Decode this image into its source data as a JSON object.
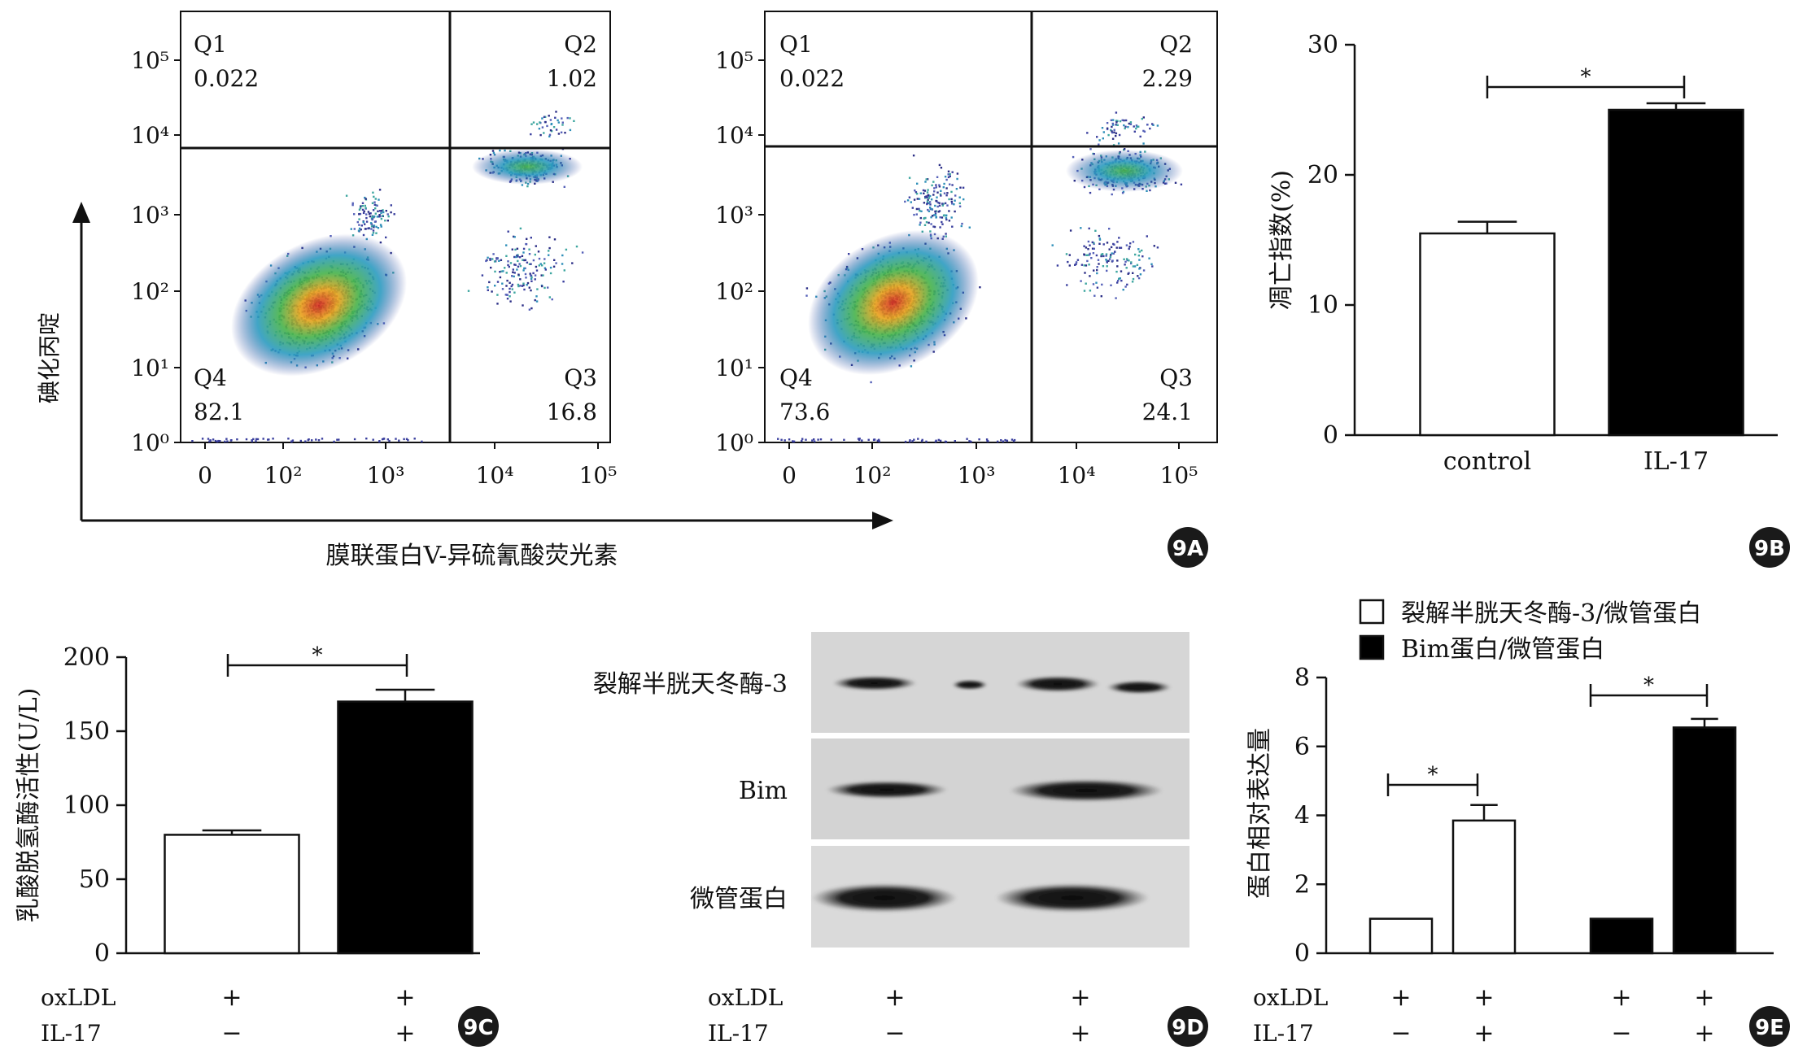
{
  "flow_y_ticks": [
    "10⁰",
    "10¹",
    "10²",
    "10³",
    "10⁴",
    "10⁵"
  ],
  "flow_x_ticks": [
    "0",
    "10²",
    "10³",
    "10⁴",
    "10⁵"
  ],
  "flow_ylabel": "碘化丙啶",
  "flow_xlabel": "膜联蛋白V-异硫氰酸荧光素",
  "flow_plots": [
    {
      "q1_label": "Q1",
      "q1": "0.022",
      "q2_label": "Q2",
      "q2": "1.02",
      "q3_label": "Q3",
      "q3": "16.8",
      "q4_label": "Q4",
      "q4": "82.1"
    },
    {
      "q1_label": "Q1",
      "q1": "0.022",
      "q2_label": "Q2",
      "q2": "2.29",
      "q3_label": "Q3",
      "q3": "24.1",
      "q4_label": "Q4",
      "q4": "73.6"
    }
  ],
  "panels": {
    "a": "9A",
    "b": "9B",
    "c": "9C",
    "d": "9D",
    "e": "9E"
  },
  "chart_data": [
    {
      "id": "9B",
      "type": "bar",
      "categories": [
        "control",
        "IL-17"
      ],
      "values": [
        15.5,
        25
      ],
      "errors": [
        0.9,
        0.5
      ],
      "colors": [
        "#ffffff",
        "#000000"
      ],
      "ylabel": "凋亡指数(%)",
      "ylim": [
        0,
        30
      ],
      "yticks": [
        "0",
        "10",
        "20",
        "30"
      ],
      "significance": "*"
    },
    {
      "id": "9C",
      "type": "bar",
      "categories": [
        "oxLDL + / IL-17 −",
        "oxLDL + / IL-17 +"
      ],
      "values": [
        80,
        170
      ],
      "errors": [
        3,
        8
      ],
      "colors": [
        "#ffffff",
        "#000000"
      ],
      "ylabel": "乳酸脱氢酶活性(U/L)",
      "ylim": [
        0,
        200
      ],
      "yticks": [
        "0",
        "50",
        "100",
        "150",
        "200"
      ],
      "significance": "*",
      "conditions": [
        {
          "name": "oxLDL",
          "values": [
            "+",
            "+"
          ]
        },
        {
          "name": "IL-17",
          "values": [
            "−",
            "+"
          ]
        }
      ]
    },
    {
      "id": "9D",
      "type": "table",
      "blot_rows": [
        "裂解半胱天冬酶-3",
        "Bim",
        "微管蛋白"
      ],
      "conditions": [
        {
          "name": "oxLDL",
          "values": [
            "+",
            "+"
          ]
        },
        {
          "name": "IL-17",
          "values": [
            "−",
            "+"
          ]
        }
      ]
    },
    {
      "id": "9E",
      "type": "bar",
      "series": [
        {
          "name": "裂解半胱天冬酶-3/微管蛋白",
          "values": [
            1.0,
            3.85
          ],
          "errors": [
            0,
            0.45
          ],
          "color": "#ffffff"
        },
        {
          "name": "Bim蛋白/微管蛋白",
          "values": [
            1.0,
            6.55
          ],
          "errors": [
            0,
            0.25
          ],
          "color": "#000000"
        }
      ],
      "ylabel": "蛋白相对表达量",
      "ylim": [
        0,
        8
      ],
      "yticks": [
        "0",
        "2",
        "4",
        "6",
        "8"
      ],
      "significance": "*",
      "conditions": [
        {
          "name": "oxLDL",
          "values": [
            "+",
            "+",
            "+",
            "+"
          ]
        },
        {
          "name": "IL-17",
          "values": [
            "−",
            "+",
            "−",
            "+"
          ]
        }
      ]
    }
  ]
}
